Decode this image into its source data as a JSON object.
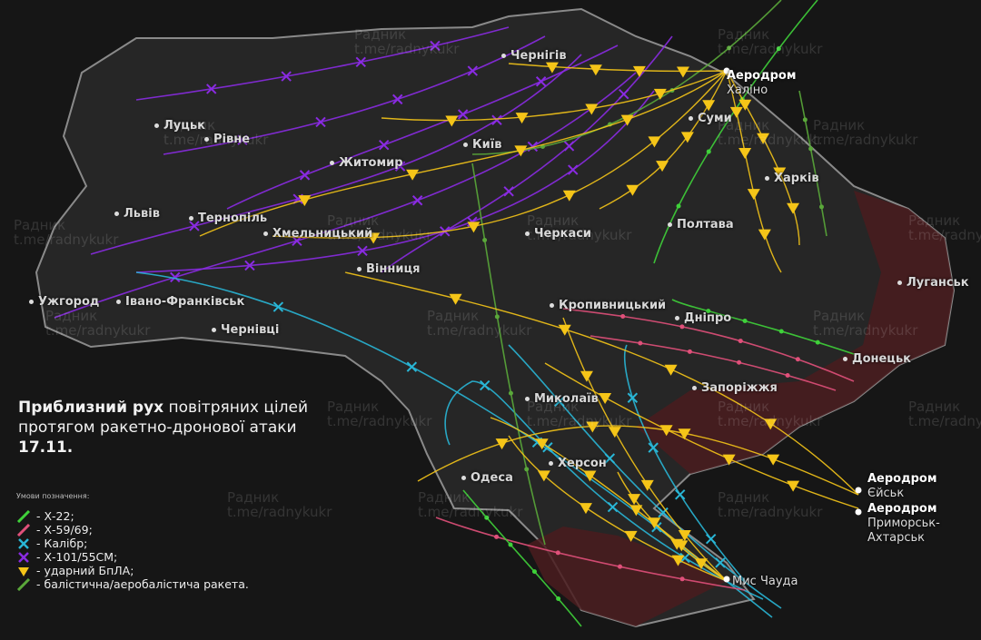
{
  "title": {
    "bold1": "Приблизний рух",
    "text1": " повітряних цілей протягом ракетно-дронової атаки ",
    "bold2": "17.11."
  },
  "legend": {
    "heading": "Умови позначення:",
    "items": [
      {
        "label": "- Х-22;",
        "color": "#3fd13a",
        "icon": "green-missile-icon"
      },
      {
        "label": "- Х-59/69;",
        "color": "#e0507a",
        "icon": "pink-missile-icon"
      },
      {
        "label": "- Калібр;",
        "color": "#29b6d6",
        "icon": "cyan-cross-icon"
      },
      {
        "label": "- Х-101/55СМ;",
        "color": "#8a2be2",
        "icon": "purple-cross-icon"
      },
      {
        "label": "- ударний БпЛА;",
        "color": "#f5c518",
        "icon": "yellow-triangle-icon"
      },
      {
        "label": "- балістична/аеробалістича ракета.",
        "color": "#5aa83a",
        "icon": "green-line-icon"
      }
    ]
  },
  "cities": [
    {
      "name": "Чернігів"
    },
    {
      "name": "Луцьк"
    },
    {
      "name": "Рівне"
    },
    {
      "name": "Київ"
    },
    {
      "name": "Житомир"
    },
    {
      "name": "Суми"
    },
    {
      "name": "Харків"
    },
    {
      "name": "Львів"
    },
    {
      "name": "Тернопіль"
    },
    {
      "name": "Хмельницький"
    },
    {
      "name": "Черкаси"
    },
    {
      "name": "Полтава"
    },
    {
      "name": "Луганськ"
    },
    {
      "name": "Вінниця"
    },
    {
      "name": "Ужгород"
    },
    {
      "name": "Івано-Франківськ"
    },
    {
      "name": "Чернівці"
    },
    {
      "name": "Кропивницький"
    },
    {
      "name": "Дніпро"
    },
    {
      "name": "Донецьк"
    },
    {
      "name": "Запоріжжя"
    },
    {
      "name": "Миколаїв"
    },
    {
      "name": "Херсон"
    },
    {
      "name": "Одеса"
    }
  ],
  "launch_sites": [
    {
      "line1": "Аеродром",
      "line2": "Халіно"
    },
    {
      "line1": "Аеродром",
      "line2": "Єйськ"
    },
    {
      "line1": "Аеродром",
      "line2": "Приморськ-Ахтарськ"
    },
    {
      "line1": "",
      "line2": "Мис Чауда"
    }
  ],
  "watermark": {
    "line1": "Радник",
    "line2": "t.me/radnykukr"
  },
  "colors": {
    "background": "#161616",
    "territory": "#262626",
    "occupied": "#4a1c1e",
    "border": "#8a8a8a"
  }
}
